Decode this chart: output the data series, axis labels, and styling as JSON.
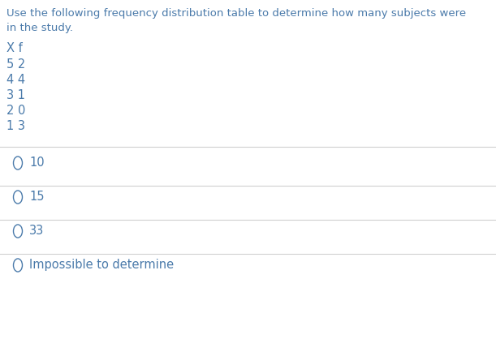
{
  "question_text_line1": "Use the following frequency distribution table to determine how many subjects were",
  "question_text_line2": "in the study.",
  "table_header_x": "X",
  "table_header_f": "f",
  "table_rows": [
    [
      "5",
      "2"
    ],
    [
      "4",
      "4"
    ],
    [
      "3",
      "1"
    ],
    [
      "2",
      "0"
    ],
    [
      "1",
      "3"
    ]
  ],
  "options": [
    "10",
    "15",
    "33",
    "Impossible to determine"
  ],
  "text_color": "#4a7aaa",
  "bg_color": "#ffffff",
  "line_color": "#d0d0d0",
  "font_size_question": 9.5,
  "font_size_table": 10.5,
  "font_size_option": 10.5
}
